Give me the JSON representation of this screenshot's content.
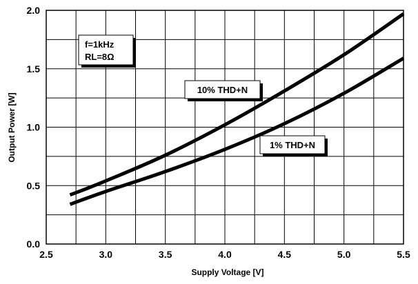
{
  "chart_data": {
    "type": "line",
    "title": "",
    "xlabel": "Supply Voltage [V]",
    "ylabel": "Output Power [W]",
    "xlim": [
      2.5,
      5.5
    ],
    "ylim": [
      0.0,
      2.0
    ],
    "x_ticks": [
      2.5,
      3.0,
      3.5,
      4.0,
      4.5,
      5.0,
      5.5
    ],
    "x_tick_labels": [
      "2.5",
      "3.0",
      "3.5",
      "4.0",
      "4.5",
      "5.0",
      "5.5"
    ],
    "y_ticks": [
      0.0,
      0.5,
      1.0,
      1.5,
      2.0
    ],
    "y_tick_labels": [
      "0.0",
      "0.5",
      "1.0",
      "1.5",
      "2.0"
    ],
    "x_minor_step": 0.25,
    "y_minor_step": 0.25,
    "grid": true,
    "conditions": [
      "f=1kHz",
      "RL=8Ω"
    ],
    "series": [
      {
        "name": "10% THD+N",
        "x": [
          2.7,
          3.0,
          3.5,
          4.0,
          4.5,
          5.0,
          5.5
        ],
        "values": [
          0.42,
          0.54,
          0.76,
          1.02,
          1.31,
          1.62,
          1.97
        ]
      },
      {
        "name": "1% THD+N",
        "x": [
          2.7,
          3.0,
          3.5,
          4.0,
          4.5,
          5.0,
          5.5
        ],
        "values": [
          0.34,
          0.45,
          0.62,
          0.81,
          1.03,
          1.29,
          1.59
        ]
      }
    ],
    "colors": {
      "grid": "#000000",
      "line": "#000000",
      "label_box": "#ffffff",
      "label_shadow": "#000000"
    }
  }
}
